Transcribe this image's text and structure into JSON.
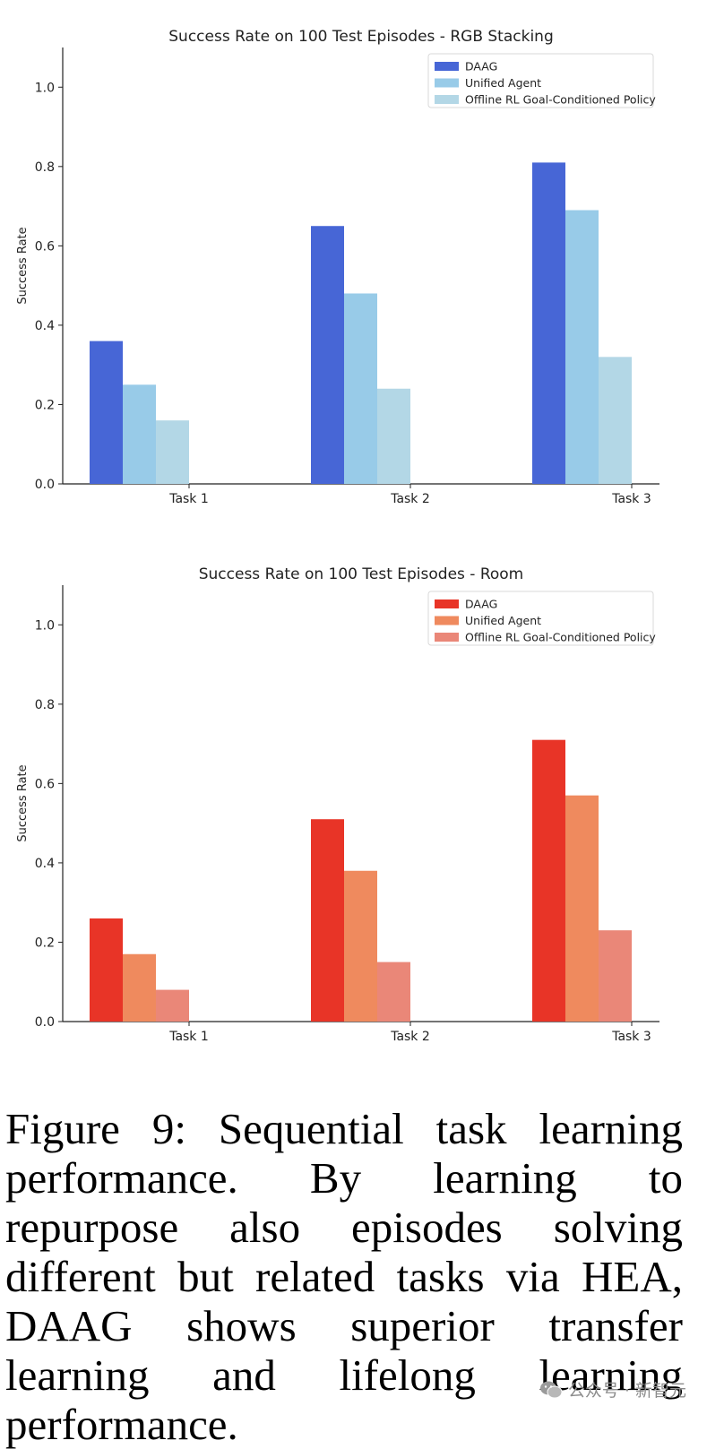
{
  "chart_data": [
    {
      "type": "bar",
      "title": "Success Rate on 100 Test Episodes - RGB Stacking",
      "xlabel": "",
      "ylabel": "Success Rate",
      "ylim": [
        0,
        1.1
      ],
      "yticks": [
        "0.0",
        "0.2",
        "0.4",
        "0.6",
        "0.8",
        "1.0"
      ],
      "categories": [
        "Task 1",
        "Task 2",
        "Task 3"
      ],
      "legend_position": "top-right",
      "series": [
        {
          "name": "DAAG",
          "color": "#4766d6",
          "values": [
            0.36,
            0.65,
            0.81
          ]
        },
        {
          "name": "Unified Agent",
          "color": "#98cbe8",
          "values": [
            0.25,
            0.48,
            0.69
          ]
        },
        {
          "name": "Offline RL Goal-Conditioned Policy",
          "color": "#b3d7e6",
          "values": [
            0.16,
            0.24,
            0.32
          ]
        }
      ]
    },
    {
      "type": "bar",
      "title": "Success Rate on 100 Test Episodes - Room",
      "xlabel": "",
      "ylabel": "Success Rate",
      "ylim": [
        0,
        1.1
      ],
      "yticks": [
        "0.0",
        "0.2",
        "0.4",
        "0.6",
        "0.8",
        "1.0"
      ],
      "categories": [
        "Task 1",
        "Task 2",
        "Task 3"
      ],
      "legend_position": "top-right",
      "series": [
        {
          "name": "DAAG",
          "color": "#e83427",
          "values": [
            0.26,
            0.51,
            0.71
          ]
        },
        {
          "name": "Unified Agent",
          "color": "#ef8a5e",
          "values": [
            0.17,
            0.38,
            0.57
          ]
        },
        {
          "name": "Offline RL Goal-Conditioned Policy",
          "color": "#ea8778",
          "values": [
            0.08,
            0.15,
            0.23
          ]
        }
      ]
    }
  ],
  "caption": "Figure 9: Sequential task learning performance. By learning to repurpose also episodes solving different but related tasks via HEA, DAAG shows superior transfer learning and lifelong learning performance.",
  "watermark": {
    "icon": "wechat-icon",
    "text": "公众号 · 新智元"
  }
}
